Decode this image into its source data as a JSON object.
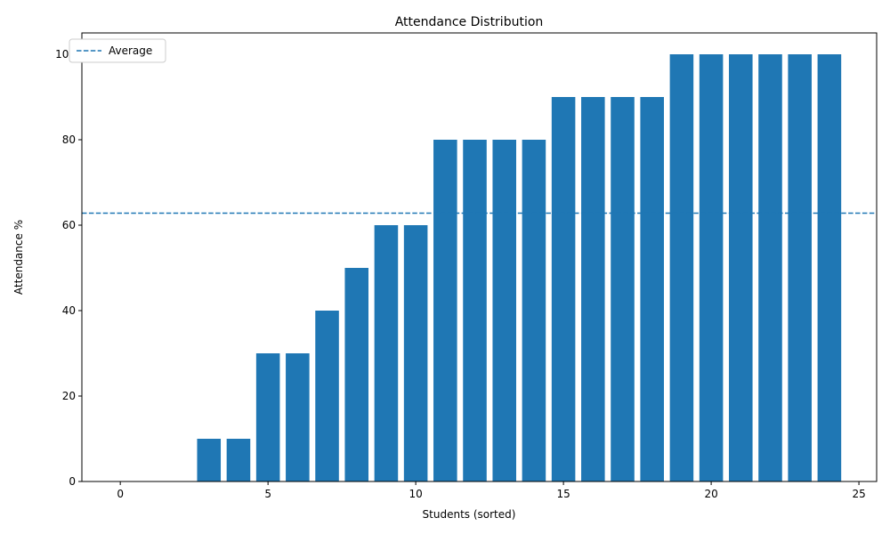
{
  "chart_data": {
    "type": "bar",
    "title": "Attendance Distribution",
    "xlabel": "Students (sorted)",
    "ylabel": "Attendance %",
    "x": [
      0,
      1,
      2,
      3,
      4,
      5,
      6,
      7,
      8,
      9,
      10,
      11,
      12,
      13,
      14,
      15,
      16,
      17,
      18,
      19,
      20,
      21,
      22,
      23,
      24
    ],
    "values": [
      0,
      0,
      0,
      10,
      10,
      30,
      30,
      40,
      50,
      60,
      60,
      80,
      80,
      80,
      80,
      90,
      90,
      90,
      90,
      100,
      100,
      100,
      100,
      100,
      100
    ],
    "bar_color": "#1f77b4",
    "xlim": [
      -1.3,
      25.6
    ],
    "ylim": [
      0,
      105
    ],
    "xticks": [
      0,
      5,
      10,
      15,
      20,
      25
    ],
    "yticks": [
      0,
      20,
      40,
      60,
      80,
      100
    ],
    "reference_line": {
      "name": "Average",
      "value": 62.8,
      "style": "dashed",
      "color": "#1f77b4"
    },
    "legend": {
      "position": "top-left",
      "entries": [
        "Average"
      ]
    },
    "grid": false
  }
}
